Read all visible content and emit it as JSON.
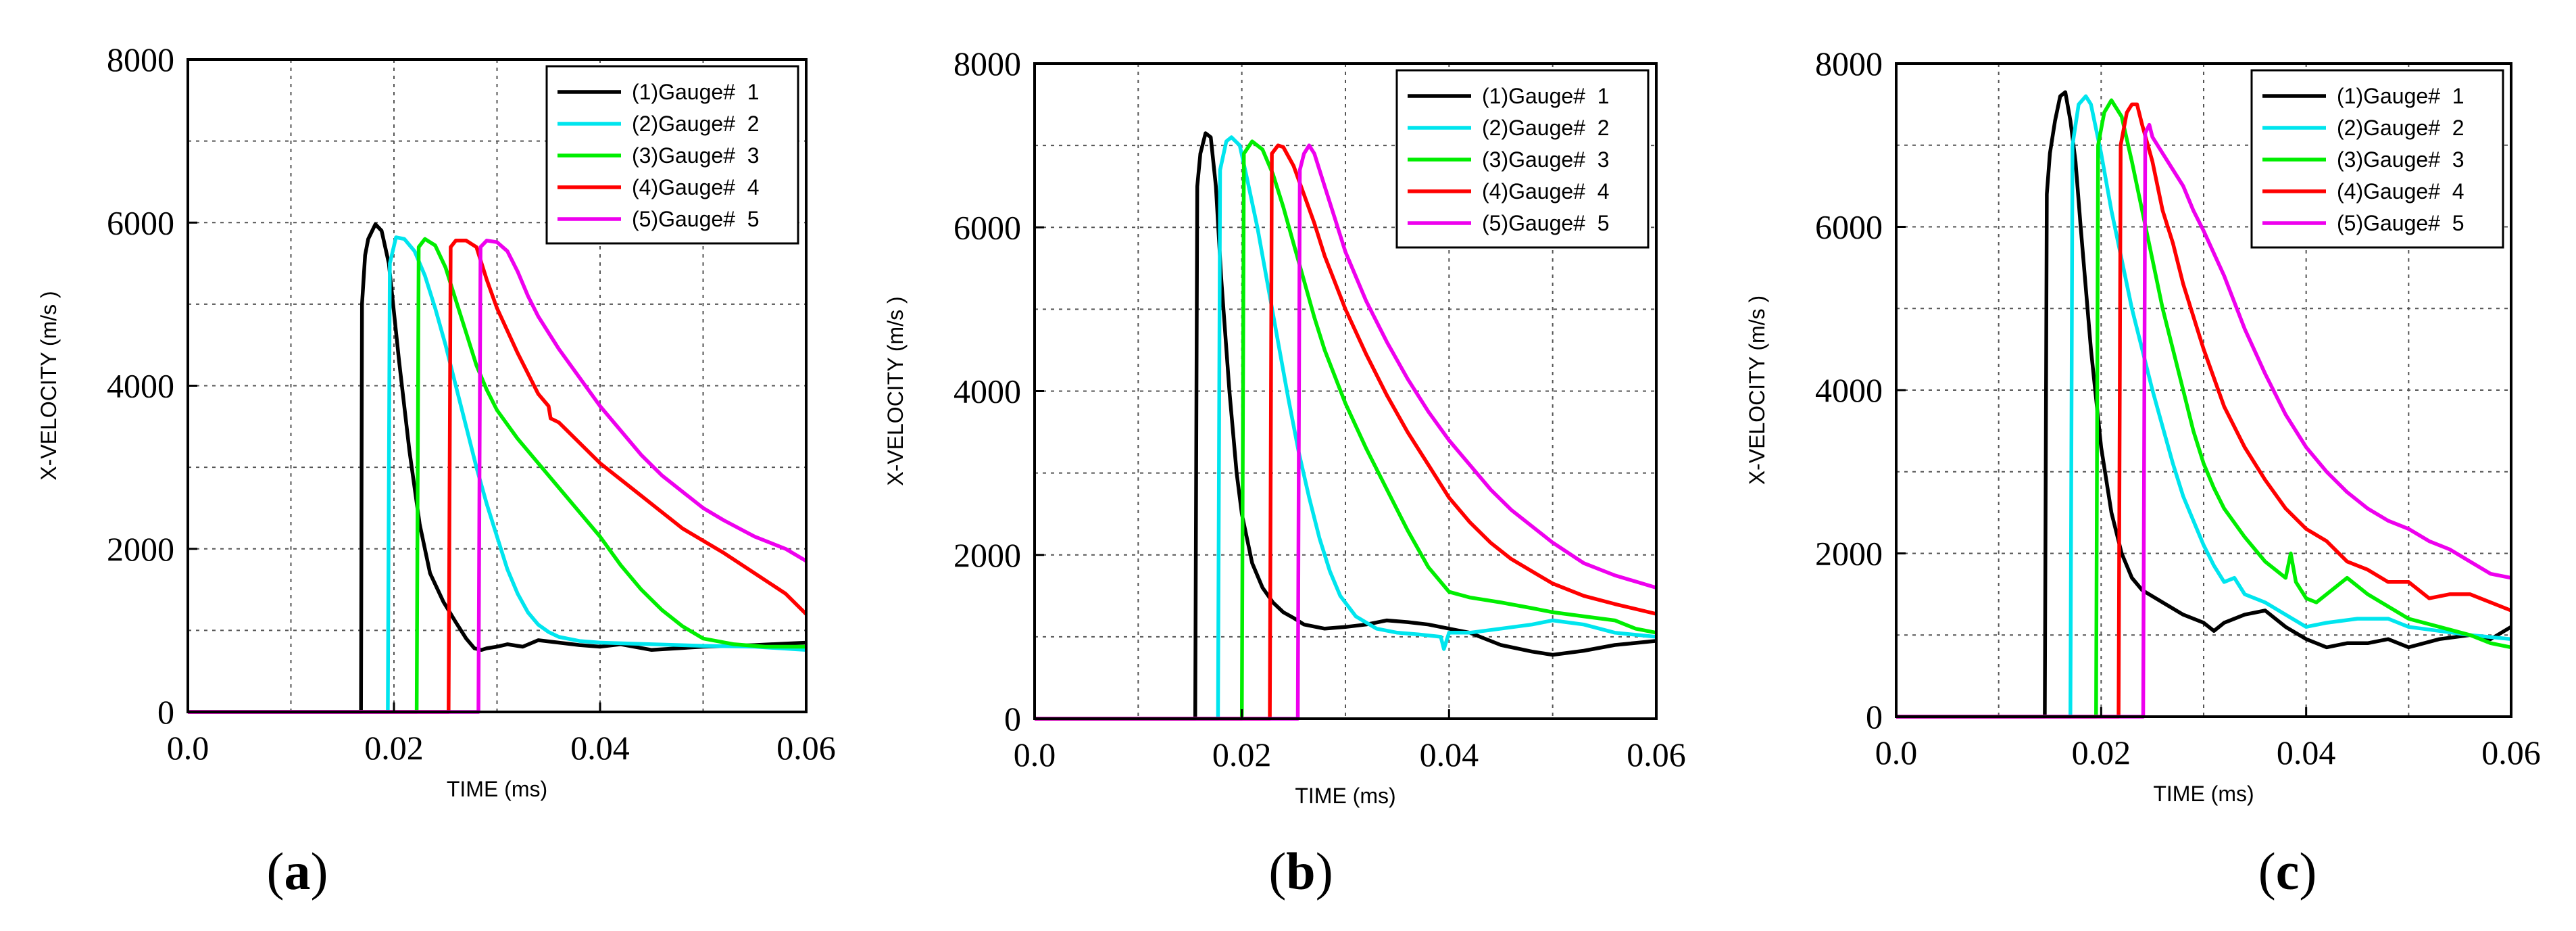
{
  "figure_title": "",
  "colors": {
    "gauge1": "#000000",
    "gauge2": "#00e5ee",
    "gauge3": "#00ee00",
    "gauge4": "#ff0000",
    "gauge5": "#ee00ee"
  },
  "chart_data": [
    {
      "type": "line",
      "panel_label": "a",
      "title": "",
      "xlabel": "TIME (ms)",
      "ylabel": "X-VELOCITY (m/s )",
      "xlim": [
        0,
        0.06
      ],
      "ylim": [
        0,
        8000
      ],
      "xticks": [
        "0.0",
        "0.02",
        "0.04",
        "0.06"
      ],
      "yticks": [
        "0",
        "2000",
        "4000",
        "6000",
        "8000"
      ],
      "grid": true,
      "legend_position": "top-right",
      "series": [
        {
          "name": "(1)Gauge#  1",
          "x": [
            0,
            0.0168,
            0.0169,
            0.0172,
            0.0175,
            0.0182,
            0.0188,
            0.0195,
            0.0205,
            0.0215,
            0.0225,
            0.0235,
            0.0248,
            0.026,
            0.027,
            0.0278,
            0.0285,
            0.029,
            0.03,
            0.031,
            0.0325,
            0.034,
            0.036,
            0.038,
            0.04,
            0.042,
            0.045,
            0.05,
            0.055,
            0.06
          ],
          "y": [
            0,
            0,
            5000,
            5600,
            5800,
            5980,
            5900,
            5500,
            4300,
            3200,
            2300,
            1700,
            1350,
            1100,
            900,
            780,
            760,
            780,
            800,
            830,
            800,
            880,
            850,
            820,
            800,
            830,
            760,
            800,
            820,
            850
          ]
        },
        {
          "name": "(2)Gauge#  2",
          "x": [
            0,
            0.0194,
            0.0196,
            0.0202,
            0.021,
            0.022,
            0.023,
            0.024,
            0.025,
            0.026,
            0.027,
            0.028,
            0.029,
            0.03,
            0.031,
            0.032,
            0.033,
            0.034,
            0.035,
            0.036,
            0.038,
            0.04,
            0.045,
            0.05,
            0.055,
            0.06
          ],
          "y": [
            0,
            0,
            5500,
            5820,
            5800,
            5650,
            5350,
            4950,
            4500,
            4000,
            3500,
            3000,
            2550,
            2150,
            1750,
            1450,
            1220,
            1070,
            980,
            920,
            870,
            850,
            830,
            810,
            800,
            760
          ]
        },
        {
          "name": "(3)Gauge#  3",
          "x": [
            0,
            0.0222,
            0.0224,
            0.023,
            0.024,
            0.025,
            0.026,
            0.027,
            0.028,
            0.029,
            0.03,
            0.032,
            0.034,
            0.036,
            0.038,
            0.04,
            0.042,
            0.044,
            0.046,
            0.048,
            0.05,
            0.053,
            0.056,
            0.06
          ],
          "y": [
            0,
            0,
            5700,
            5800,
            5720,
            5450,
            5050,
            4650,
            4250,
            3950,
            3700,
            3350,
            3050,
            2750,
            2450,
            2150,
            1800,
            1500,
            1250,
            1050,
            900,
            830,
            800,
            800
          ]
        },
        {
          "name": "(4)Gauge#  4",
          "x": [
            0,
            0.0253,
            0.0255,
            0.026,
            0.027,
            0.028,
            0.029,
            0.03,
            0.032,
            0.034,
            0.035,
            0.0352,
            0.036,
            0.038,
            0.04,
            0.042,
            0.044,
            0.046,
            0.048,
            0.05,
            0.052,
            0.055,
            0.058,
            0.06
          ],
          "y": [
            0,
            0,
            5700,
            5780,
            5780,
            5700,
            5300,
            4950,
            4400,
            3900,
            3750,
            3600,
            3550,
            3300,
            3050,
            2850,
            2650,
            2450,
            2250,
            2100,
            1950,
            1700,
            1450,
            1200
          ]
        },
        {
          "name": "(5)Gauge#  5",
          "x": [
            0,
            0.0282,
            0.0284,
            0.029,
            0.03,
            0.031,
            0.032,
            0.033,
            0.034,
            0.036,
            0.038,
            0.04,
            0.042,
            0.044,
            0.046,
            0.048,
            0.05,
            0.052,
            0.055,
            0.058,
            0.06
          ],
          "y": [
            0,
            0,
            5700,
            5780,
            5760,
            5650,
            5400,
            5100,
            4850,
            4450,
            4100,
            3750,
            3450,
            3150,
            2900,
            2700,
            2500,
            2350,
            2150,
            2000,
            1850
          ]
        }
      ]
    },
    {
      "type": "line",
      "panel_label": "b",
      "title": "",
      "xlabel": "TIME (ms)",
      "ylabel": "X-VELOCITY (m/s )",
      "xlim": [
        0,
        0.06
      ],
      "ylim": [
        0,
        8000
      ],
      "xticks": [
        "0.0",
        "0.02",
        "0.04",
        "0.06"
      ],
      "yticks": [
        "0",
        "2000",
        "4000",
        "6000",
        "8000"
      ],
      "grid": true,
      "legend_position": "top-right",
      "series": [
        {
          "name": "(1)Gauge#  1",
          "x": [
            0,
            0.0155,
            0.0157,
            0.016,
            0.0165,
            0.017,
            0.0175,
            0.018,
            0.0188,
            0.0195,
            0.02,
            0.021,
            0.022,
            0.023,
            0.024,
            0.025,
            0.026,
            0.028,
            0.03,
            0.032,
            0.034,
            0.036,
            0.038,
            0.04,
            0.042,
            0.045,
            0.048,
            0.05,
            0.053,
            0.056,
            0.06
          ],
          "y": [
            0,
            0,
            6500,
            6900,
            7150,
            7100,
            6500,
            5400,
            4000,
            3000,
            2500,
            1900,
            1600,
            1420,
            1300,
            1230,
            1150,
            1100,
            1120,
            1150,
            1200,
            1180,
            1150,
            1100,
            1050,
            900,
            820,
            780,
            830,
            900,
            950
          ]
        },
        {
          "name": "(2)Gauge#  2",
          "x": [
            0,
            0.0177,
            0.0179,
            0.0185,
            0.019,
            0.0198,
            0.0205,
            0.0215,
            0.0225,
            0.0235,
            0.0245,
            0.0255,
            0.0265,
            0.0275,
            0.0285,
            0.0295,
            0.031,
            0.033,
            0.035,
            0.037,
            0.0392,
            0.0395,
            0.04,
            0.042,
            0.045,
            0.048,
            0.05,
            0.053,
            0.056,
            0.06
          ],
          "y": [
            0,
            0,
            6700,
            7050,
            7100,
            7000,
            6600,
            6000,
            5300,
            4600,
            3900,
            3250,
            2700,
            2200,
            1800,
            1500,
            1250,
            1100,
            1050,
            1030,
            1000,
            850,
            1050,
            1050,
            1100,
            1150,
            1200,
            1150,
            1050,
            1000
          ]
        },
        {
          "name": "(3)Gauge#  3",
          "x": [
            0,
            0.02,
            0.0202,
            0.021,
            0.022,
            0.023,
            0.024,
            0.025,
            0.026,
            0.027,
            0.028,
            0.03,
            0.032,
            0.034,
            0.036,
            0.038,
            0.04,
            0.042,
            0.045,
            0.048,
            0.05,
            0.053,
            0.056,
            0.058,
            0.06
          ],
          "y": [
            0,
            0,
            6900,
            7050,
            6950,
            6650,
            6250,
            5800,
            5350,
            4900,
            4500,
            3850,
            3300,
            2800,
            2300,
            1850,
            1550,
            1480,
            1420,
            1350,
            1300,
            1250,
            1200,
            1100,
            1050
          ]
        },
        {
          "name": "(4)Gauge#  4",
          "x": [
            0,
            0.0227,
            0.0229,
            0.0235,
            0.024,
            0.025,
            0.026,
            0.027,
            0.028,
            0.03,
            0.032,
            0.034,
            0.036,
            0.038,
            0.04,
            0.042,
            0.044,
            0.046,
            0.048,
            0.05,
            0.053,
            0.056,
            0.06
          ],
          "y": [
            0,
            0,
            6900,
            7000,
            6980,
            6750,
            6400,
            6050,
            5650,
            5000,
            4450,
            3950,
            3500,
            3100,
            2700,
            2400,
            2150,
            1950,
            1800,
            1650,
            1500,
            1400,
            1280
          ]
        },
        {
          "name": "(5)Gauge#  5",
          "x": [
            0,
            0.0254,
            0.0256,
            0.026,
            0.0265,
            0.027,
            0.028,
            0.029,
            0.03,
            0.032,
            0.034,
            0.036,
            0.038,
            0.04,
            0.042,
            0.044,
            0.046,
            0.048,
            0.05,
            0.053,
            0.056,
            0.06
          ],
          "y": [
            0,
            0,
            6700,
            6900,
            7000,
            6900,
            6500,
            6100,
            5700,
            5100,
            4600,
            4150,
            3750,
            3400,
            3100,
            2800,
            2550,
            2350,
            2150,
            1900,
            1750,
            1600
          ]
        }
      ]
    },
    {
      "type": "line",
      "panel_label": "c",
      "title": "",
      "xlabel": "TIME (ms)",
      "ylabel": "X-VELOCITY (m/s )",
      "xlim": [
        0,
        0.06
      ],
      "ylim": [
        0,
        8000
      ],
      "xticks": [
        "0.0",
        "0.02",
        "0.04",
        "0.06"
      ],
      "yticks": [
        "0",
        "2000",
        "4000",
        "6000",
        "8000"
      ],
      "grid": true,
      "legend_position": "top-right",
      "series": [
        {
          "name": "(1)Gauge#  1",
          "x": [
            0,
            0.0145,
            0.0147,
            0.015,
            0.0155,
            0.016,
            0.0165,
            0.017,
            0.0175,
            0.018,
            0.019,
            0.02,
            0.021,
            0.022,
            0.023,
            0.024,
            0.026,
            0.028,
            0.03,
            0.031,
            0.032,
            0.034,
            0.036,
            0.038,
            0.04,
            0.042,
            0.044,
            0.046,
            0.048,
            0.05,
            0.053,
            0.056,
            0.058,
            0.06
          ],
          "y": [
            0,
            0,
            6400,
            6900,
            7300,
            7600,
            7650,
            7300,
            6800,
            6000,
            4500,
            3300,
            2500,
            2000,
            1700,
            1550,
            1400,
            1250,
            1150,
            1050,
            1150,
            1250,
            1300,
            1100,
            950,
            850,
            900,
            900,
            950,
            850,
            950,
            1000,
            950,
            1100
          ]
        },
        {
          "name": "(2)Gauge#  2",
          "x": [
            0,
            0.017,
            0.0172,
            0.0178,
            0.0185,
            0.019,
            0.02,
            0.021,
            0.022,
            0.023,
            0.024,
            0.025,
            0.026,
            0.027,
            0.028,
            0.029,
            0.03,
            0.031,
            0.032,
            0.033,
            0.034,
            0.036,
            0.038,
            0.04,
            0.042,
            0.045,
            0.048,
            0.05,
            0.053,
            0.056,
            0.06
          ],
          "y": [
            0,
            0,
            7000,
            7500,
            7600,
            7500,
            6900,
            6200,
            5600,
            5000,
            4500,
            4000,
            3550,
            3100,
            2700,
            2400,
            2100,
            1850,
            1650,
            1700,
            1500,
            1400,
            1250,
            1100,
            1150,
            1200,
            1200,
            1100,
            1050,
            1000,
            950
          ]
        },
        {
          "name": "(3)Gauge#  3",
          "x": [
            0,
            0.0195,
            0.0197,
            0.0203,
            0.021,
            0.022,
            0.023,
            0.024,
            0.025,
            0.026,
            0.027,
            0.028,
            0.029,
            0.03,
            0.031,
            0.032,
            0.034,
            0.036,
            0.038,
            0.0385,
            0.039,
            0.04,
            0.041,
            0.042,
            0.044,
            0.046,
            0.048,
            0.05,
            0.053,
            0.056,
            0.058,
            0.06
          ],
          "y": [
            0,
            0,
            7000,
            7400,
            7550,
            7350,
            6800,
            6200,
            5600,
            5000,
            4500,
            4000,
            3500,
            3100,
            2800,
            2550,
            2200,
            1900,
            1700,
            2000,
            1650,
            1450,
            1400,
            1500,
            1700,
            1500,
            1350,
            1200,
            1100,
            1000,
            900,
            850
          ]
        },
        {
          "name": "(4)Gauge#  4",
          "x": [
            0,
            0.0217,
            0.0219,
            0.0225,
            0.023,
            0.0235,
            0.024,
            0.025,
            0.026,
            0.027,
            0.028,
            0.03,
            0.032,
            0.034,
            0.036,
            0.038,
            0.04,
            0.042,
            0.044,
            0.046,
            0.048,
            0.05,
            0.052,
            0.054,
            0.056,
            0.058,
            0.06
          ],
          "y": [
            0,
            0,
            7000,
            7400,
            7500,
            7500,
            7250,
            6800,
            6200,
            5800,
            5300,
            4500,
            3800,
            3300,
            2900,
            2550,
            2300,
            2150,
            1900,
            1800,
            1650,
            1650,
            1450,
            1500,
            1500,
            1400,
            1300
          ]
        },
        {
          "name": "(5)Gauge#  5",
          "x": [
            0,
            0.0241,
            0.0243,
            0.0247,
            0.025,
            0.026,
            0.027,
            0.028,
            0.029,
            0.03,
            0.032,
            0.034,
            0.036,
            0.038,
            0.04,
            0.042,
            0.044,
            0.046,
            0.048,
            0.05,
            0.052,
            0.054,
            0.056,
            0.058,
            0.06
          ],
          "y": [
            0,
            0,
            7150,
            7250,
            7100,
            6900,
            6700,
            6500,
            6200,
            5950,
            5400,
            4750,
            4200,
            3700,
            3300,
            3000,
            2750,
            2550,
            2400,
            2300,
            2150,
            2050,
            1900,
            1750,
            1700
          ]
        }
      ]
    }
  ]
}
